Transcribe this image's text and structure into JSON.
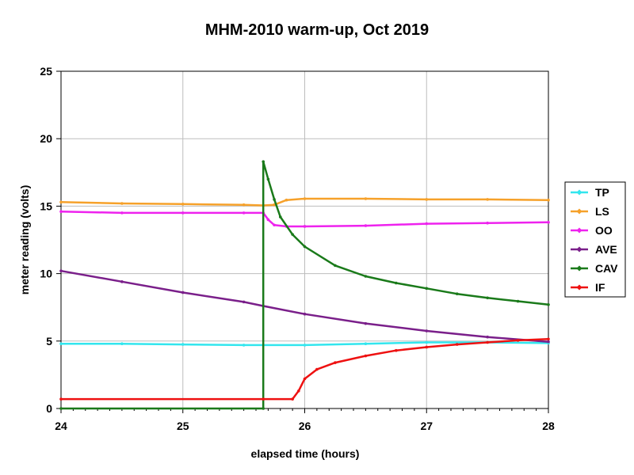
{
  "chart_data": {
    "type": "line",
    "title": "MHM-2010 warm-up, Oct 2019",
    "xlabel": "elapsed time (hours)",
    "ylabel": "meter reading (volts)",
    "xlim": [
      24,
      28
    ],
    "ylim": [
      0,
      25
    ],
    "xticks": [
      "24",
      "25",
      "26",
      "27",
      "28"
    ],
    "yticks": [
      "0",
      "5",
      "10",
      "15",
      "20",
      "25"
    ],
    "grid": true,
    "legend_position": "right",
    "series": [
      {
        "name": "TP",
        "color": "#33e6ee",
        "points": [
          [
            24,
            4.8
          ],
          [
            24.5,
            4.8
          ],
          [
            25,
            4.75
          ],
          [
            25.5,
            4.7
          ],
          [
            25.66,
            4.7
          ],
          [
            26,
            4.7
          ],
          [
            26.5,
            4.8
          ],
          [
            27,
            4.9
          ],
          [
            27.5,
            4.9
          ],
          [
            28,
            4.85
          ]
        ]
      },
      {
        "name": "LS",
        "color": "#f6a12a",
        "points": [
          [
            24,
            15.3
          ],
          [
            24.5,
            15.2
          ],
          [
            25,
            15.15
          ],
          [
            25.5,
            15.1
          ],
          [
            25.66,
            15.05
          ],
          [
            25.75,
            15.1
          ],
          [
            25.85,
            15.45
          ],
          [
            26,
            15.55
          ],
          [
            26.5,
            15.55
          ],
          [
            27,
            15.5
          ],
          [
            27.5,
            15.5
          ],
          [
            28,
            15.45
          ]
        ]
      },
      {
        "name": "OO",
        "color": "#ee22ee",
        "points": [
          [
            24,
            14.6
          ],
          [
            24.5,
            14.5
          ],
          [
            25,
            14.5
          ],
          [
            25.5,
            14.5
          ],
          [
            25.66,
            14.5
          ],
          [
            25.7,
            14.0
          ],
          [
            25.75,
            13.6
          ],
          [
            25.85,
            13.5
          ],
          [
            26,
            13.5
          ],
          [
            26.5,
            13.55
          ],
          [
            27,
            13.7
          ],
          [
            27.5,
            13.75
          ],
          [
            28,
            13.8
          ]
        ]
      },
      {
        "name": "AVE",
        "color": "#7a1f8a",
        "points": [
          [
            24,
            10.2
          ],
          [
            24.5,
            9.4
          ],
          [
            25,
            8.6
          ],
          [
            25.5,
            7.9
          ],
          [
            25.66,
            7.6
          ],
          [
            26,
            7.0
          ],
          [
            26.5,
            6.3
          ],
          [
            27,
            5.75
          ],
          [
            27.5,
            5.3
          ],
          [
            28,
            4.95
          ]
        ]
      },
      {
        "name": "CAV",
        "color": "#1a7a1a",
        "points": [
          [
            24,
            0.0
          ],
          [
            25.66,
            0.0
          ],
          [
            25.66,
            18.3
          ],
          [
            25.7,
            17.0
          ],
          [
            25.75,
            15.5
          ],
          [
            25.8,
            14.2
          ],
          [
            25.9,
            12.9
          ],
          [
            26,
            12.0
          ],
          [
            26.25,
            10.6
          ],
          [
            26.5,
            9.8
          ],
          [
            26.75,
            9.3
          ],
          [
            27,
            8.9
          ],
          [
            27.25,
            8.5
          ],
          [
            27.5,
            8.2
          ],
          [
            27.75,
            7.95
          ],
          [
            28,
            7.7
          ]
        ]
      },
      {
        "name": "IF",
        "color": "#ee1111",
        "points": [
          [
            24,
            0.7
          ],
          [
            25.66,
            0.7
          ],
          [
            25.9,
            0.7
          ],
          [
            25.95,
            1.3
          ],
          [
            26,
            2.2
          ],
          [
            26.1,
            2.9
          ],
          [
            26.25,
            3.4
          ],
          [
            26.5,
            3.9
          ],
          [
            26.75,
            4.3
          ],
          [
            27,
            4.55
          ],
          [
            27.25,
            4.75
          ],
          [
            27.5,
            4.9
          ],
          [
            27.75,
            5.05
          ],
          [
            28,
            5.15
          ]
        ]
      }
    ]
  }
}
